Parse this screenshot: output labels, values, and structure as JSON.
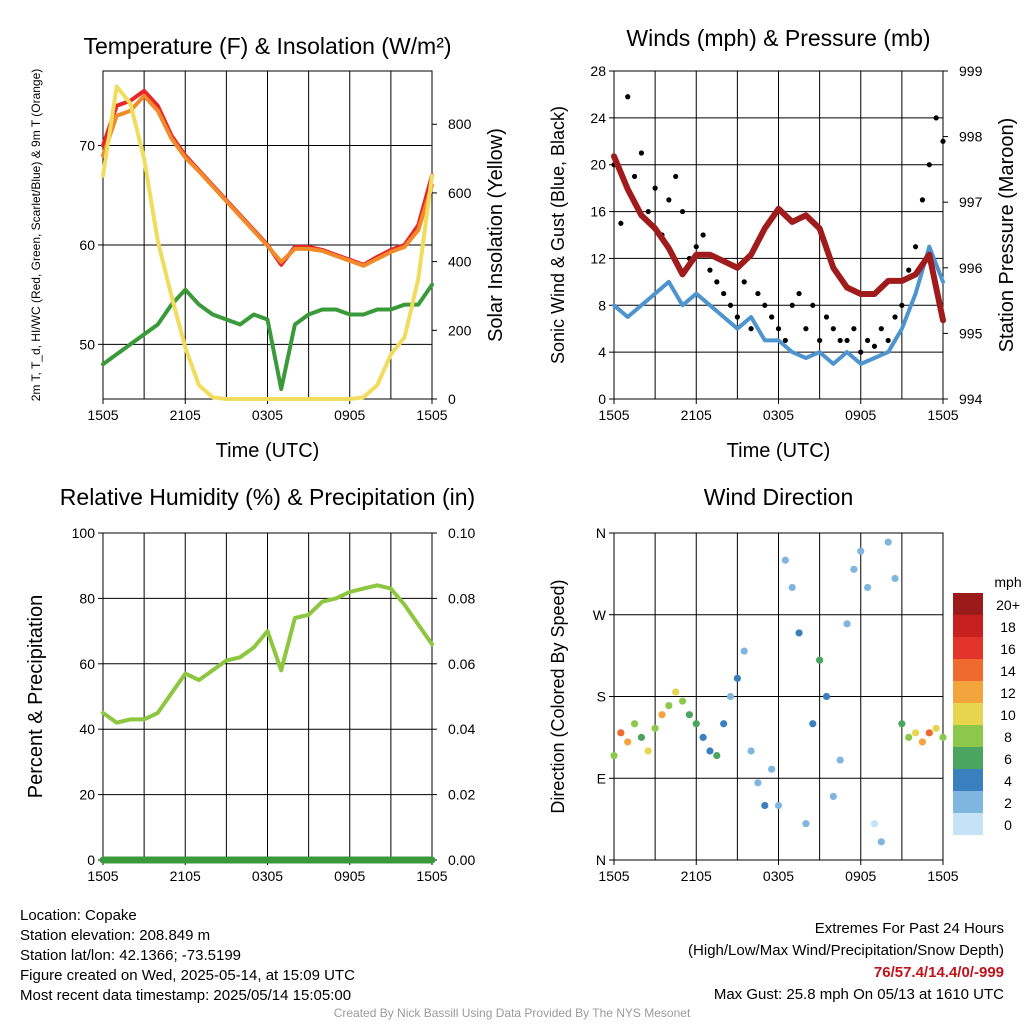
{
  "chart_data": [
    {
      "type": "line",
      "title": "Temperature (F) & Insolation (W/m²)",
      "xlabel": "Time (UTC)",
      "ylabel": "2m T, T_d, HI/WC (Red, Green, Scarlet/Blue) & 9m T (Orange)",
      "y2label": "Solar Insolation (Yellow)",
      "x_ticks": [
        "1505",
        "2105",
        "0305",
        "0905",
        "1505"
      ],
      "y_ticks": [
        50,
        60,
        70
      ],
      "y2_ticks": [
        0,
        200,
        400,
        600,
        800
      ],
      "ylim": [
        44.5,
        77.5
      ],
      "y2lim": [
        0,
        955
      ],
      "series": [
        {
          "color": "#e8262a",
          "x": [
            0,
            1,
            2,
            3,
            4,
            5,
            6,
            7,
            8,
            9,
            10,
            11,
            12,
            13,
            14,
            15,
            16,
            17,
            18,
            19,
            20,
            21,
            22,
            23,
            24
          ],
          "values": [
            70,
            74,
            74.5,
            75.5,
            74,
            71,
            69,
            67.5,
            66,
            64.5,
            63,
            61.5,
            60,
            58,
            59.8,
            59.8,
            59.5,
            59,
            58.5,
            58,
            58.8,
            59.5,
            60,
            62,
            67
          ]
        },
        {
          "color": "#f08a2a",
          "x": [
            0,
            1,
            2,
            3,
            4,
            5,
            6,
            7,
            8,
            9,
            10,
            11,
            12,
            13,
            14,
            15,
            16,
            17,
            18,
            19,
            20,
            21,
            22,
            23,
            24
          ],
          "values": [
            69,
            73,
            73.5,
            75,
            73.5,
            70.7,
            68.8,
            67.4,
            65.9,
            64.4,
            62.9,
            61.4,
            59.9,
            58.3,
            59.6,
            59.6,
            59.4,
            58.9,
            58.4,
            57.9,
            58.6,
            59.3,
            59.8,
            61.5,
            66
          ]
        },
        {
          "color": "#3a9a3a",
          "x": [
            0,
            1,
            2,
            3,
            4,
            5,
            6,
            7,
            8,
            9,
            10,
            11,
            12,
            13,
            14,
            15,
            16,
            17,
            18,
            19,
            20,
            21,
            22,
            23,
            24
          ],
          "values": [
            48,
            49,
            50,
            51,
            52,
            54,
            55.5,
            54,
            53,
            52.5,
            52,
            53,
            52.5,
            45.5,
            52,
            53,
            53.5,
            53.5,
            53,
            53,
            53.5,
            53.5,
            54,
            54,
            56
          ]
        },
        {
          "color": "#f2dc5d",
          "x": [
            0,
            1,
            2,
            3,
            4,
            5,
            6,
            7,
            8,
            9,
            10,
            11,
            12,
            13,
            14,
            15,
            16,
            17,
            18,
            19,
            20,
            21,
            22,
            23,
            24
          ],
          "values": [
            650,
            910,
            860,
            700,
            460,
            300,
            150,
            40,
            5,
            0,
            0,
            0,
            0,
            0,
            0,
            0,
            0,
            0,
            0,
            5,
            40,
            130,
            180,
            350,
            650
          ]
        }
      ]
    },
    {
      "type": "line",
      "title": "Winds (mph) & Pressure (mb)",
      "xlabel": "Time (UTC)",
      "ylabel": "Sonic Wind & Gust (Blue, Black)",
      "y2label": "Station Pressure (Maroon)",
      "x_ticks": [
        "1505",
        "2105",
        "0305",
        "0905",
        "1505"
      ],
      "y_ticks": [
        0,
        4,
        8,
        12,
        16,
        20,
        24,
        28
      ],
      "y2_ticks": [
        994,
        995,
        996,
        997,
        998,
        999
      ],
      "ylim": [
        0,
        28
      ],
      "y2lim": [
        994,
        999
      ],
      "series": [
        {
          "color": "#4e94cf",
          "x": [
            0,
            1,
            2,
            3,
            4,
            5,
            6,
            7,
            8,
            9,
            10,
            11,
            12,
            13,
            14,
            15,
            16,
            17,
            18,
            19,
            20,
            21,
            22,
            23,
            24
          ],
          "values": [
            8,
            7,
            8,
            9,
            10,
            8,
            9,
            8,
            7,
            6,
            7,
            5,
            5,
            4,
            3.5,
            4,
            3,
            4,
            3,
            3.5,
            4,
            6,
            9,
            13,
            10
          ]
        },
        {
          "color": "#000000",
          "points": true,
          "x": [
            0,
            0.5,
            1,
            1.5,
            2,
            2.5,
            3,
            3.5,
            4,
            4.5,
            5,
            5.5,
            6,
            6.5,
            7,
            7.5,
            8,
            8.5,
            9,
            9.5,
            10,
            10.5,
            11,
            11.5,
            12,
            12.5,
            13,
            13.5,
            14,
            14.5,
            15,
            15.5,
            16,
            16.5,
            17,
            17.5,
            18,
            18.5,
            19,
            19.5,
            20,
            20.5,
            21,
            21.5,
            22,
            22.5,
            23,
            23.5,
            24
          ],
          "values": [
            20,
            15,
            25.8,
            19,
            21,
            16,
            18,
            14,
            17,
            19,
            16,
            12,
            13,
            14,
            11,
            10,
            9,
            8,
            7,
            10,
            6,
            9,
            8,
            7,
            6,
            5,
            8,
            9,
            6,
            8,
            5,
            7,
            6,
            5,
            5,
            6,
            4,
            5,
            4.5,
            6,
            5,
            7,
            8,
            11,
            13,
            17,
            20,
            24,
            22
          ]
        },
        {
          "color": "#a01c1c",
          "x": [
            0,
            1,
            2,
            3,
            4,
            5,
            6,
            7,
            8,
            9,
            10,
            11,
            12,
            13,
            14,
            15,
            16,
            17,
            18,
            19,
            20,
            21,
            22,
            23,
            24
          ],
          "values": [
            997.7,
            997.2,
            996.8,
            996.6,
            996.3,
            995.9,
            996.2,
            996.2,
            996.1,
            996.0,
            996.2,
            996.6,
            996.9,
            996.7,
            996.8,
            996.6,
            996.0,
            995.7,
            995.6,
            995.6,
            995.8,
            995.8,
            995.9,
            996.2,
            995.2
          ]
        }
      ]
    },
    {
      "type": "line",
      "title": "Relative Humidity (%) & Precipitation (in)",
      "xlabel": "",
      "ylabel": "Percent & Precipitation",
      "x_ticks": [
        "1505",
        "2105",
        "0305",
        "0905",
        "1505"
      ],
      "y_ticks": [
        0,
        20,
        40,
        60,
        80,
        100
      ],
      "y2_ticks": [
        "0.00",
        "0.02",
        "0.04",
        "0.06",
        "0.08",
        "0.10"
      ],
      "ylim": [
        0,
        100
      ],
      "y2lim": [
        0,
        0.1
      ],
      "series": [
        {
          "color": "#8dc63f",
          "x": [
            0,
            1,
            2,
            3,
            4,
            5,
            6,
            7,
            8,
            9,
            10,
            11,
            12,
            13,
            14,
            15,
            16,
            17,
            18,
            19,
            20,
            21,
            22,
            23,
            24
          ],
          "values": [
            45,
            42,
            43,
            43,
            45,
            51,
            57,
            55,
            58,
            61,
            62,
            65,
            70,
            58,
            74,
            75,
            79,
            80,
            82,
            83,
            84,
            83,
            78,
            72,
            66
          ]
        },
        {
          "color": "#3a9a3a",
          "x": [
            0,
            24
          ],
          "values": [
            0,
            0
          ]
        }
      ]
    },
    {
      "type": "scatter",
      "title": "Wind Direction",
      "xlabel": "",
      "ylabel": "Direction (Colored By Speed)",
      "x_ticks": [
        "1505",
        "2105",
        "0305",
        "0905",
        "1505"
      ],
      "y_ticks": [
        "N",
        "E",
        "S",
        "W",
        "N"
      ],
      "ylim": [
        0,
        360
      ],
      "colorbar_title": "mph",
      "colorbar_labels": [
        "20+",
        "18",
        "16",
        "14",
        "12",
        "10",
        "8",
        "6",
        "4",
        "2",
        "0"
      ],
      "colorbar_colors": [
        "#9b1b1b",
        "#c8201f",
        "#e2342a",
        "#ef6a2e",
        "#f4a43d",
        "#e8d54e",
        "#8cc84a",
        "#4aa55f",
        "#3a7fbe",
        "#7fb6e0",
        "#c5e3f6"
      ],
      "x": [
        0,
        0.5,
        1,
        1.5,
        2,
        2.5,
        3,
        3.5,
        4,
        4.5,
        5,
        5.5,
        6,
        6.5,
        7,
        7.5,
        8,
        8.5,
        9,
        9.5,
        10,
        10.5,
        11,
        11.5,
        12,
        12.5,
        13,
        13.5,
        14,
        14.5,
        15,
        15.5,
        16,
        16.5,
        17,
        17.5,
        18,
        18.5,
        19,
        19.5,
        20,
        20.5,
        21,
        21.5,
        22,
        22.5,
        23,
        23.5,
        24
      ],
      "values": [
        115,
        140,
        130,
        150,
        135,
        120,
        145,
        160,
        170,
        185,
        175,
        160,
        150,
        135,
        120,
        115,
        150,
        180,
        200,
        230,
        120,
        85,
        60,
        100,
        60,
        330,
        300,
        250,
        40,
        150,
        220,
        180,
        70,
        110,
        260,
        320,
        340,
        300,
        40,
        20,
        350,
        310,
        150,
        135,
        140,
        130,
        140,
        145,
        135
      ],
      "speeds": [
        8,
        14,
        12,
        8,
        6,
        10,
        8,
        12,
        9,
        10,
        8,
        6,
        6,
        5,
        4,
        6,
        5,
        3,
        4,
        3,
        2,
        3,
        4,
        2,
        3,
        2,
        3,
        4,
        2,
        5,
        6,
        4,
        2,
        3,
        2,
        3,
        2,
        3,
        1,
        2,
        2,
        3,
        6,
        8,
        10,
        12,
        14,
        10,
        8
      ]
    }
  ],
  "footer": {
    "location": "Location: Copake",
    "elevation": "Station elevation: 208.849 m",
    "latlon": "Station lat/lon: 42.1366; -73.5199",
    "created": "Figure created on Wed, 2025-05-14, at 15:09 UTC",
    "recent": "Most recent data timestamp: 2025/05/14 15:05:00",
    "extremes_title": "Extremes For Past 24 Hours",
    "extremes_legend": "(High/Low/Max Wind/Precipitation/Snow Depth)",
    "extremes_values": "76/57.4/14.4/0/-999",
    "max_gust": "Max Gust: 25.8 mph On 05/13 at 1610 UTC",
    "credit": "Created By Nick Bassill Using Data Provided By The NYS Mesonet"
  }
}
